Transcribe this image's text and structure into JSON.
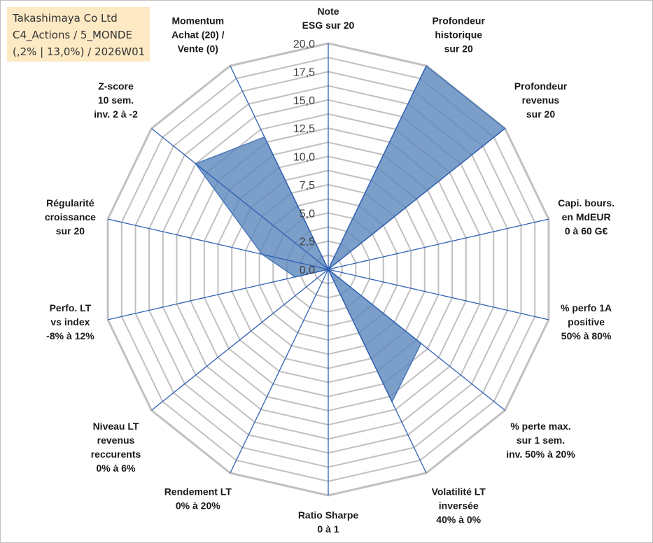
{
  "title_box": {
    "line1": "Takashimaya Co Ltd",
    "line2": "C4_Actions / 5_MONDE",
    "line3": "(,2% | 13,0%) / 2026W01",
    "background": "#fde9c4"
  },
  "colors": {
    "fill": "#5b87bd",
    "stroke": "#4a78b8",
    "grid": "#c0c0c0",
    "spoke": "#2f5fb3"
  },
  "chart_data": {
    "type": "radar",
    "title": "",
    "rmin": 0,
    "rmax": 20,
    "ticks": [
      "0,0",
      "2,5",
      "5,0",
      "7,5",
      "10,0",
      "12,5",
      "15,0",
      "17,5",
      "20,0"
    ],
    "grid_levels": 16,
    "axes": [
      {
        "label": [
          "Note",
          "ESG sur 20"
        ],
        "value": 0
      },
      {
        "label": [
          "Profondeur",
          "historique",
          "sur 20"
        ],
        "value": 20
      },
      {
        "label": [
          "Profondeur",
          "revenus",
          "sur 20"
        ],
        "value": 20
      },
      {
        "label": [
          "Capi. bours.",
          "en MdEUR",
          "0 à 60 G€"
        ],
        "value": 0
      },
      {
        "label": [
          "% perfo 1A",
          "positive",
          "50% à 80%"
        ],
        "value": 0
      },
      {
        "label": [
          "% perte max.",
          "sur 1 sem.",
          "inv. 50% à 20%"
        ],
        "value": 10.5
      },
      {
        "label": [
          "Volatilité LT",
          "inversée",
          "40% à 0%"
        ],
        "value": 13
      },
      {
        "label": [
          "Ratio Sharpe",
          "0 à 1"
        ],
        "value": 0
      },
      {
        "label": [
          "Rendement LT",
          "0% à 20%"
        ],
        "value": 0
      },
      {
        "label": [
          "Niveau LT",
          "revenus",
          "reccurents",
          "0% à 6%"
        ],
        "value": 0
      },
      {
        "label": [
          "Perfo. LT",
          "vs index",
          "-8% à 12%"
        ],
        "value": 3
      },
      {
        "label": [
          "Régularité",
          "croissance",
          "sur 20"
        ],
        "value": 6
      },
      {
        "label": [
          "Z-score",
          "10 sem.",
          "inv. 2 à -2"
        ],
        "value": 15
      },
      {
        "label": [
          "Momentum",
          "Achat (20) /",
          "Vente (0)"
        ],
        "value": 13
      }
    ]
  }
}
